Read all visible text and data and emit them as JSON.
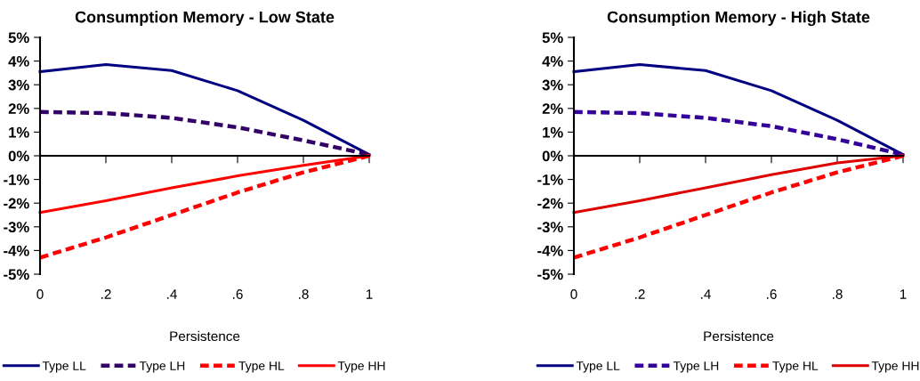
{
  "chart_data": [
    {
      "type": "line",
      "title": "Consumption Memory - Low State",
      "xlabel": "Persistence",
      "x": [
        0,
        0.2,
        0.4,
        0.6,
        0.8,
        1
      ],
      "series": [
        {
          "name": "Type LL",
          "color": "#000080",
          "line_style": "solid",
          "values": [
            3.55,
            3.85,
            3.6,
            2.75,
            1.5,
            0.05
          ]
        },
        {
          "name": "Type LH",
          "color": "#330066",
          "line_style": "dashed",
          "values": [
            1.85,
            1.8,
            1.6,
            1.2,
            0.65,
            0.05
          ]
        },
        {
          "name": "Type HL",
          "color": "#ff0000",
          "line_style": "dashed",
          "values": [
            -4.3,
            -3.45,
            -2.5,
            -1.55,
            -0.7,
            0
          ]
        },
        {
          "name": "Type HH",
          "color": "#ff0000",
          "line_style": "solid",
          "values": [
            -2.4,
            -1.9,
            -1.35,
            -0.85,
            -0.4,
            0
          ]
        }
      ],
      "xlim": [
        0,
        1
      ],
      "xticks": [
        0,
        {
          "value": 0.2,
          "label": ".2"
        },
        {
          "value": 0.4,
          "label": ".4"
        },
        {
          "value": 0.6,
          "label": ".6"
        },
        {
          "value": 0.8,
          "label": ".8"
        },
        1
      ],
      "ylim": [
        -5,
        5
      ],
      "yticks": [
        {
          "value": -5,
          "label": "-5%"
        },
        {
          "value": -4,
          "label": "-4%"
        },
        {
          "value": -3,
          "label": "-3%"
        },
        {
          "value": -2,
          "label": "-2%"
        },
        {
          "value": -1,
          "label": "-1%"
        },
        {
          "value": 0,
          "label": "0%"
        },
        {
          "value": 1,
          "label": "1%"
        },
        {
          "value": 2,
          "label": "2%"
        },
        {
          "value": 3,
          "label": "3%"
        },
        {
          "value": 4,
          "label": "4%"
        },
        {
          "value": 5,
          "label": "5%"
        }
      ],
      "legend": "bottom",
      "marker": "none"
    },
    {
      "type": "line",
      "title": "Consumption Memory - High State",
      "xlabel": "Persistence",
      "x": [
        0,
        0.2,
        0.4,
        0.6,
        0.8,
        1
      ],
      "series": [
        {
          "name": "Type LL",
          "color": "#000080",
          "line_style": "solid",
          "values": [
            3.55,
            3.85,
            3.6,
            2.75,
            1.5,
            0.05
          ]
        },
        {
          "name": "Type LH",
          "color": "#330099",
          "line_style": "dashed",
          "values": [
            1.85,
            1.8,
            1.6,
            1.25,
            0.7,
            0.05
          ]
        },
        {
          "name": "Type HL",
          "color": "#ff0000",
          "line_style": "dashed",
          "values": [
            -4.3,
            -3.45,
            -2.5,
            -1.55,
            -0.7,
            0
          ]
        },
        {
          "name": "Type HH",
          "color": "#dd0000",
          "line_style": "solid",
          "values": [
            -2.4,
            -1.9,
            -1.35,
            -0.8,
            -0.3,
            0
          ]
        }
      ],
      "xlim": [
        0,
        1
      ],
      "xticks": [
        0,
        {
          "value": 0.2,
          "label": ".2"
        },
        {
          "value": 0.4,
          "label": ".4"
        },
        {
          "value": 0.6,
          "label": ".6"
        },
        {
          "value": 0.8,
          "label": ".8"
        },
        1
      ],
      "ylim": [
        -5,
        5
      ],
      "yticks": [
        {
          "value": -5,
          "label": "-5%"
        },
        {
          "value": -4,
          "label": "-4%"
        },
        {
          "value": -3,
          "label": "-3%"
        },
        {
          "value": -2,
          "label": "-2%"
        },
        {
          "value": -1,
          "label": "-1%"
        },
        {
          "value": 0,
          "label": "0%"
        },
        {
          "value": 1,
          "label": "1%"
        },
        {
          "value": 2,
          "label": "2%"
        },
        {
          "value": 3,
          "label": "3%"
        },
        {
          "value": 4,
          "label": "4%"
        },
        {
          "value": 5,
          "label": "5%"
        }
      ],
      "legend": "bottom",
      "marker": "none"
    }
  ]
}
